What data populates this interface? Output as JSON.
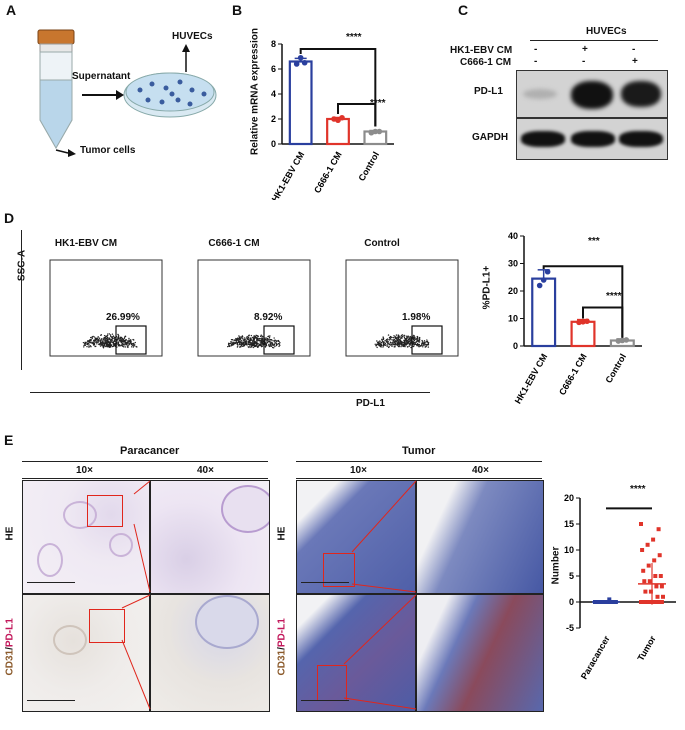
{
  "panels": {
    "A": {
      "label": "A",
      "supernatant": "Supernatant",
      "huvecs": "HUVECs",
      "tumor_cells": "Tumor cells"
    },
    "B": {
      "label": "B",
      "ylabel": "Relative mRNA expression",
      "yticks": [
        "0",
        "2",
        "4",
        "6",
        "8"
      ],
      "sig_top": "****",
      "sig_bottom": "****"
    },
    "C": {
      "label": "C",
      "title": "HUVECs",
      "rows": [
        {
          "name": "HK1-EBV CM",
          "marks": [
            "-",
            "+",
            "-"
          ]
        },
        {
          "name": "C666-1 CM",
          "marks": [
            "-",
            "-",
            "+"
          ]
        }
      ],
      "blot1": "PD-L1",
      "blot2": "GAPDH"
    },
    "D": {
      "label": "D",
      "facs": [
        {
          "title": "HK1-EBV CM",
          "pct": "26.99%"
        },
        {
          "title": "C666-1 CM",
          "pct": "8.92%"
        },
        {
          "title": "Control",
          "pct": "1.98%"
        }
      ],
      "yaxis": "SSC-A",
      "xaxis": "PD-L1",
      "ylabel": "%PD-L1+",
      "yticks": [
        "0",
        "10",
        "20",
        "30",
        "40"
      ],
      "sig_top": "***",
      "sig_bottom": "****"
    },
    "E": {
      "label": "E",
      "paracancer": "Paracancer",
      "tumor": "Tumor",
      "mag10": "10×",
      "mag40": "40×",
      "row_he": "HE",
      "row_cd31": "CD31",
      "row_pdl1": "PD-L1",
      "row_sep": "/",
      "ylabel": "Number",
      "yticks": [
        "20",
        "15",
        "10",
        "5",
        "0",
        "-5"
      ],
      "sig": "****",
      "xcats": [
        "Paracancer",
        "Tumor"
      ]
    }
  },
  "chart_data": [
    {
      "type": "bar",
      "categories": [
        "HK1-EBV CM",
        "C666-1 CM",
        "Control"
      ],
      "values": [
        6.6,
        2.0,
        1.0
      ],
      "ylabel": "Relative mRNA expression",
      "ylim": [
        0,
        8
      ],
      "colors": [
        "#2a3f9e",
        "#e0342a",
        "#8c8c8c"
      ]
    },
    {
      "type": "bar",
      "categories": [
        "HK1-EBV CM",
        "C666-1 CM",
        "Control"
      ],
      "values": [
        24.5,
        8.8,
        2.0
      ],
      "ylabel": "%PD-L1+",
      "ylim": [
        0,
        40
      ],
      "colors": [
        "#2a3f9e",
        "#e0342a",
        "#8c8c8c"
      ]
    },
    {
      "type": "scatter",
      "categories": [
        "Paracancer",
        "Tumor"
      ],
      "paracancer_values": [
        0,
        0,
        0,
        0,
        0,
        0,
        0,
        0,
        0,
        0,
        0.5,
        0,
        0,
        0,
        0
      ],
      "tumor_values": [
        15,
        14,
        12,
        11,
        10,
        9,
        8,
        7,
        6,
        5,
        5,
        4,
        4,
        3,
        3,
        2,
        2,
        1,
        1,
        0,
        0,
        0,
        0,
        0,
        0,
        0,
        0,
        0,
        0,
        0,
        0,
        0,
        0,
        0,
        0
      ],
      "ylabel": "Number",
      "ylim": [
        -5,
        20
      ],
      "colors": [
        "#2a3f9e",
        "#e0342a"
      ]
    }
  ]
}
